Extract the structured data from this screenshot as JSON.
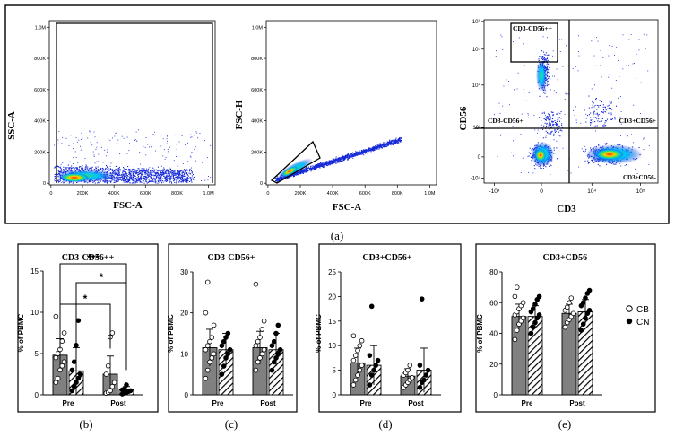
{
  "panel_labels": [
    "(a)",
    "(b)",
    "(c)",
    "(d)",
    "(e)"
  ],
  "colors": {
    "frame": "#000000",
    "bar_fill": "#808080",
    "hatch": "#000000",
    "density_low": "#1020d0",
    "density_mid": "#00c0ff",
    "density_high": "#ff3000"
  },
  "legend": {
    "items": [
      {
        "label": "CB",
        "marker": "open-circle"
      },
      {
        "label": "CN",
        "marker": "filled-circle"
      }
    ]
  },
  "flow": [
    {
      "id": "fsc-ssc",
      "xlabel": "FSC-A",
      "ylabel": "SSC-A",
      "xticks": [
        "0",
        "200K",
        "400K",
        "600K",
        "800K",
        "1.0M"
      ],
      "yticks": [
        "0",
        "200K",
        "400K",
        "600K",
        "800K",
        "1.0M"
      ]
    },
    {
      "id": "fsc-singlets",
      "xlabel": "FSC-A",
      "ylabel": "FSC-H",
      "xticks": [
        "0",
        "200K",
        "400K",
        "600K",
        "800K",
        "1.0M"
      ],
      "yticks": [
        "0",
        "200K",
        "400K",
        "600K",
        "800K",
        "1.0M"
      ]
    },
    {
      "id": "cd3-cd56",
      "xlabel": "CD3",
      "ylabel": "CD56",
      "xticks": [
        "-10⁴",
        "0",
        "10⁴",
        "10⁵"
      ],
      "yticks": [
        "-10⁴",
        "0",
        "10³",
        "10⁴",
        "10⁵",
        "10⁶"
      ],
      "gates": {
        "top_box": "CD3-CD56++",
        "upper_left": "CD3-CD56+",
        "upper_right": "CD3+CD56+",
        "lower_right": "CD3+CD56-"
      }
    }
  ],
  "chart_data": [
    {
      "type": "bar",
      "panel": "(b)",
      "title": "CD3-CD56++",
      "ylabel": "% of PBMC",
      "categories": [
        "Pre",
        "Post"
      ],
      "ylim": [
        0,
        15
      ],
      "yticks": [
        0,
        5,
        10,
        15
      ],
      "series": [
        {
          "name": "CB",
          "values": [
            4.8,
            2.5
          ],
          "errors": [
            2.0,
            2.2
          ],
          "points": [
            [
              1.5,
              2.0,
              3.0,
              3.5,
              4.0,
              4.5,
              5.0,
              5.5,
              6.5,
              7.5,
              9.5
            ],
            [
              0.2,
              0.3,
              0.5,
              1.0,
              1.5,
              2.5,
              3.5,
              7.0,
              7.5
            ]
          ]
        },
        {
          "name": "CN",
          "values": [
            2.9,
            0.6
          ],
          "errors": [
            2.8,
            0.4
          ],
          "points": [
            [
              0.5,
              1.0,
              1.5,
              2.0,
              2.5,
              3.0,
              4.0,
              6.0,
              9.0
            ],
            [
              0.1,
              0.2,
              0.3,
              0.4,
              0.5,
              0.6,
              0.7,
              1.2
            ]
          ]
        }
      ],
      "significance": [
        {
          "from": "CB-Pre",
          "to": "CN-Post",
          "label": "***"
        },
        {
          "from": "CN-Pre",
          "to": "CN-Post",
          "label": "*"
        },
        {
          "from": "CB-Pre",
          "to": "CB-Post",
          "label": "*"
        }
      ]
    },
    {
      "type": "bar",
      "panel": "(c)",
      "title": "CD3-CD56+",
      "ylabel": "% of PBMC",
      "categories": [
        "Pre",
        "Post"
      ],
      "ylim": [
        0,
        30
      ],
      "yticks": [
        0,
        10,
        20,
        30
      ],
      "series": [
        {
          "name": "CB",
          "values": [
            11.5,
            11.5
          ],
          "errors": [
            4.5,
            4.0
          ],
          "points": [
            [
              4,
              6,
              8,
              9,
              10,
              11,
              12,
              13,
              14,
              17,
              20,
              27.5
            ],
            [
              6,
              8,
              9,
              10,
              11,
              12,
              13,
              14,
              16,
              18,
              27
            ]
          ]
        },
        {
          "name": "CN",
          "values": [
            11.0,
            11.0
          ],
          "errors": [
            4.0,
            4.0
          ],
          "points": [
            [
              5,
              7,
              9,
              10,
              11,
              12,
              13,
              14,
              15
            ],
            [
              6,
              8,
              9,
              10,
              11,
              12,
              13,
              15,
              17
            ]
          ]
        }
      ]
    },
    {
      "type": "bar",
      "panel": "(d)",
      "title": "CD3+CD56+",
      "ylabel": "% of PBMC",
      "categories": [
        "Pre",
        "Post"
      ],
      "ylim": [
        0,
        25
      ],
      "yticks": [
        0,
        5,
        10,
        15,
        20,
        25
      ],
      "series": [
        {
          "name": "CB",
          "values": [
            6.5,
            3.8
          ],
          "errors": [
            3.0,
            1.5
          ],
          "points": [
            [
              2,
              3,
              4,
              5,
              6,
              7,
              8,
              9,
              10,
              11,
              12
            ],
            [
              1.5,
              2,
              2.5,
              3,
              3.5,
              4,
              4.5,
              5,
              6
            ]
          ]
        },
        {
          "name": "CN",
          "values": [
            6.0,
            5.0
          ],
          "errors": [
            4.0,
            4.5
          ],
          "points": [
            [
              2,
              4,
              5,
              6,
              7,
              8,
              18
            ],
            [
              1.5,
              2.5,
              3,
              4,
              5,
              6,
              19.5
            ]
          ]
        }
      ]
    },
    {
      "type": "bar",
      "panel": "(e)",
      "title": "CD3+CD56-",
      "ylabel": "% of PBMC",
      "categories": [
        "Pre",
        "Post"
      ],
      "ylim": [
        0,
        80
      ],
      "yticks": [
        0,
        20,
        40,
        60,
        80
      ],
      "series": [
        {
          "name": "CB",
          "values": [
            51,
            53
          ],
          "errors": [
            8,
            6
          ],
          "points": [
            [
              36,
              42,
              46,
              48,
              50,
              52,
              54,
              56,
              58,
              60,
              64,
              70
            ],
            [
              44,
              47,
              49,
              51,
              53,
              55,
              57,
              60,
              63
            ]
          ]
        },
        {
          "name": "CN",
          "values": [
            51,
            54
          ],
          "errors": [
            7,
            8
          ],
          "points": [
            [
              40,
              44,
              47,
              50,
              52,
              54,
              56,
              59,
              62,
              64
            ],
            [
              42,
              46,
              50,
              53,
              55,
              58,
              60,
              63,
              66,
              68
            ]
          ]
        }
      ]
    }
  ]
}
